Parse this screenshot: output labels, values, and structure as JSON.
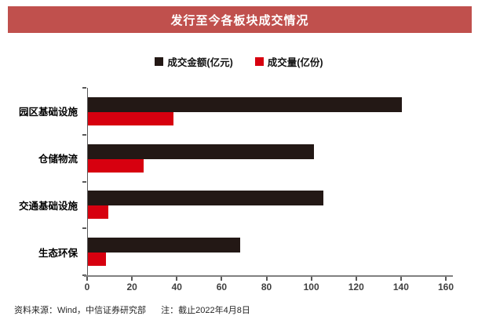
{
  "title": "发行至今各板块成交情况",
  "colors": {
    "banner_bg": "#C0504D",
    "banner_text": "#ffffff",
    "amount_bar": "#231815",
    "volume_bar": "#D7000F",
    "axis_line": "#808080",
    "tick_text": "#404040"
  },
  "footer": {
    "source": "资料来源：Wind，中信证券研究部",
    "note": "注：截止2022年4月8日"
  },
  "chart_data": {
    "type": "bar",
    "orientation": "horizontal",
    "title": "发行至今各板块成交情况",
    "categories": [
      "园区基础设施",
      "仓储物流",
      "交通基础设施",
      "生态环保"
    ],
    "series": [
      {
        "name": "成交金额(亿元)",
        "color": "#231815",
        "values": [
          140,
          101,
          105,
          68
        ]
      },
      {
        "name": "成交量(亿份)",
        "color": "#D7000F",
        "values": [
          38,
          25,
          9,
          8
        ]
      }
    ],
    "xlim": [
      0,
      160
    ],
    "xticks": [
      0,
      20,
      40,
      60,
      80,
      100,
      120,
      140,
      160
    ],
    "grid": false,
    "legend_position": "top"
  }
}
